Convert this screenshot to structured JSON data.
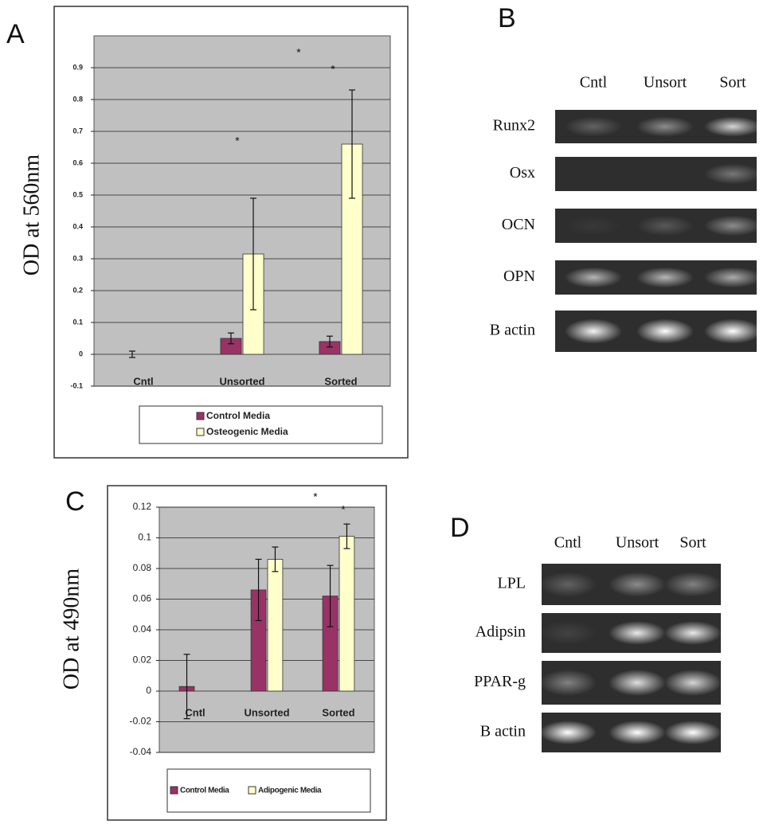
{
  "chart_data": [
    {
      "type": "bar",
      "ylabel": "OD at 560nm",
      "categories": [
        "Cntl",
        "Unsorted",
        "Sorted"
      ],
      "series": [
        {
          "name": "Control Media",
          "color": "#993366",
          "values": [
            0.0,
            0.05,
            0.04
          ],
          "errors": [
            0.01,
            0.017,
            0.017
          ]
        },
        {
          "name": "Osteogenic Media",
          "color": "#ffffcc",
          "values": [
            null,
            0.315,
            0.66
          ],
          "errors": [
            null,
            0.175,
            0.17
          ]
        }
      ],
      "ylim": [
        -0.1,
        1.0
      ],
      "yticks": [
        -0.1,
        0,
        0.1,
        0.2,
        0.3,
        0.4,
        0.5,
        0.6,
        0.7,
        0.8,
        0.9
      ],
      "grid": true,
      "annotations": [
        "*",
        "*",
        "*"
      ]
    },
    {
      "type": "bar",
      "ylabel": "OD at 490nm",
      "categories": [
        "Cntl",
        "Unsorted",
        "Sorted"
      ],
      "series": [
        {
          "name": "Control Media",
          "color": "#993366",
          "values": [
            0.003,
            0.066,
            0.062
          ],
          "errors": [
            0.021,
            0.02,
            0.02
          ]
        },
        {
          "name": "Adipogenic Media",
          "color": "#ffffcc",
          "values": [
            null,
            0.086,
            0.101
          ],
          "errors": [
            null,
            0.008,
            0.008
          ]
        }
      ],
      "ylim": [
        -0.04,
        0.12
      ],
      "yticks": [
        -0.04,
        -0.02,
        0,
        0.02,
        0.04,
        0.06,
        0.08,
        0.1,
        0.12
      ],
      "grid": true,
      "annotations": [
        "*",
        "*"
      ]
    }
  ],
  "panel_labels": [
    "A",
    "B",
    "C",
    "D"
  ],
  "gels": [
    {
      "columns": [
        "Cntl",
        "Unsort",
        "Sort"
      ],
      "rows": [
        "Runx2",
        "Osx",
        "OCN",
        "OPN",
        "B actin"
      ]
    },
    {
      "columns": [
        "Cntl",
        "Unsort",
        "Sort"
      ],
      "rows": [
        "LPL",
        "Adipsin",
        "PPAR-g",
        "B actin"
      ]
    }
  ]
}
